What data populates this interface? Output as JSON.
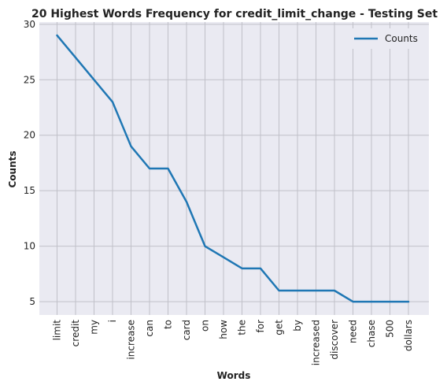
{
  "chart_data": {
    "type": "line",
    "title": "20 Highest Words Frequency for credit_limit_change - Testing Set",
    "xlabel": "Words",
    "ylabel": "Counts",
    "categories": [
      "limit",
      "credit",
      "my",
      "i",
      "increase",
      "can",
      "to",
      "card",
      "on",
      "how",
      "the",
      "for",
      "get",
      "by",
      "increased",
      "discover",
      "need",
      "chase",
      "500",
      "dollars"
    ],
    "series": [
      {
        "name": "Counts",
        "values": [
          29,
          27,
          25,
          23,
          19,
          17,
          17,
          14,
          10,
          9,
          8,
          8,
          6,
          6,
          6,
          6,
          5,
          5,
          5,
          5
        ],
        "color": "#1f77b4"
      }
    ],
    "ylim": [
      3.8,
      30.2
    ],
    "yticks": [
      5,
      10,
      15,
      20,
      25,
      30
    ],
    "grid": true,
    "legend": "top-right",
    "background": "#eaeaf2",
    "grid_color": "#c0c0c8"
  }
}
